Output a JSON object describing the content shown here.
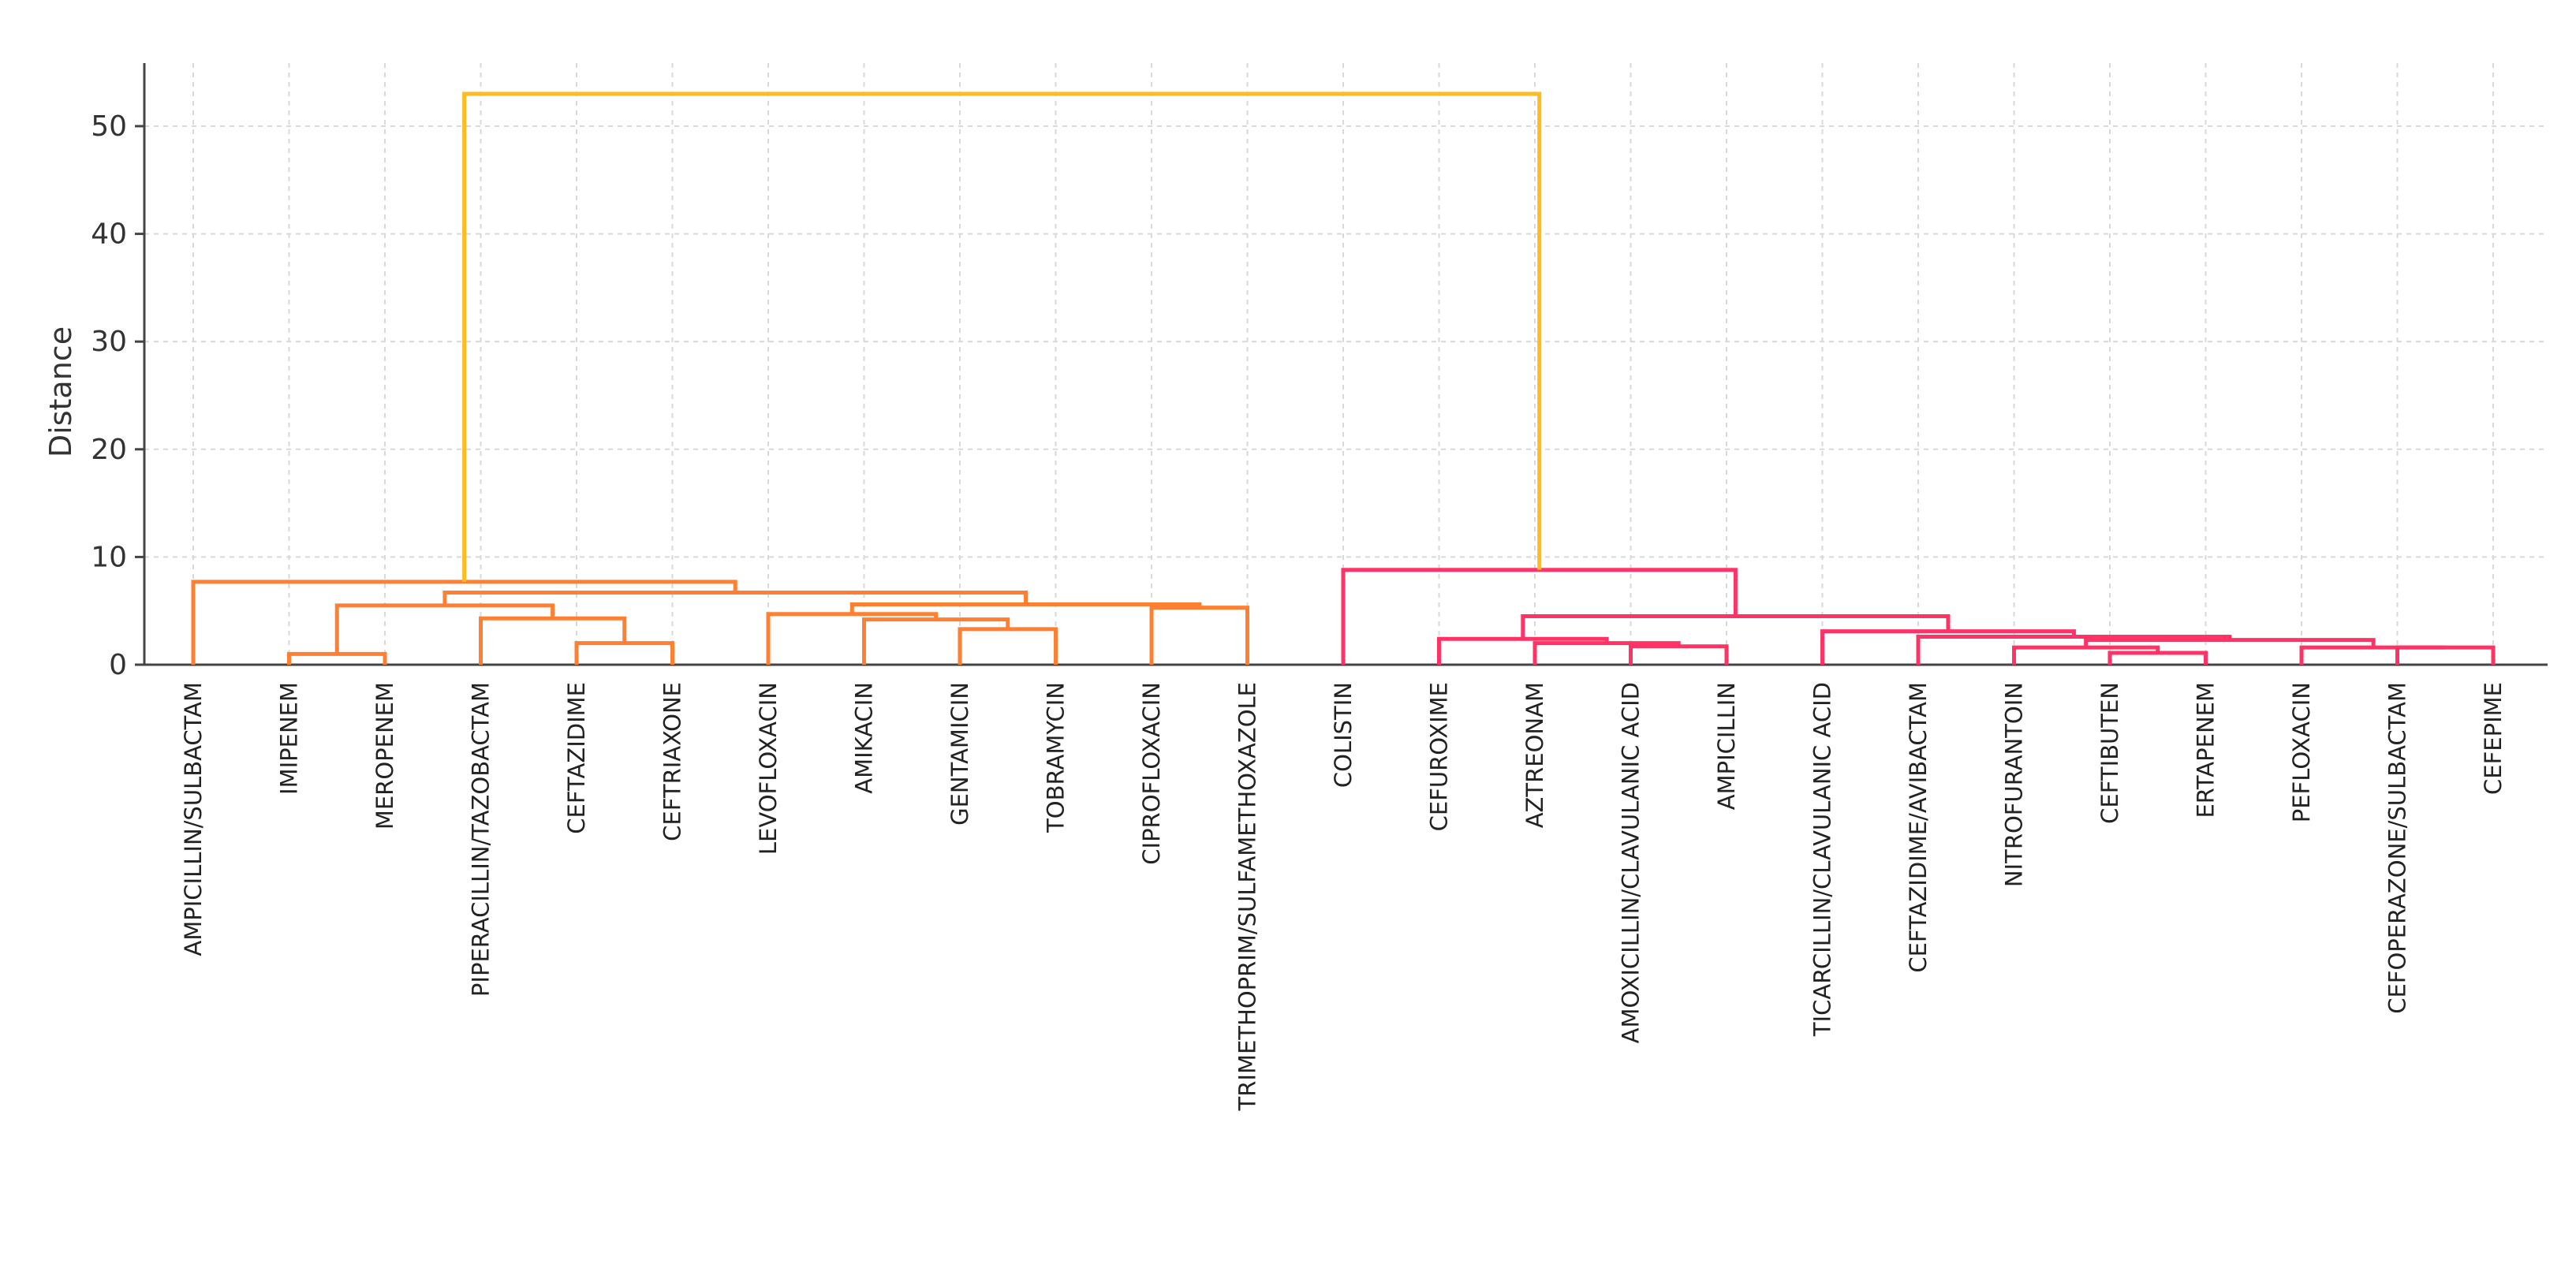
{
  "chart_data": {
    "type": "dendrogram",
    "title": "",
    "xlabel": "",
    "ylabel": "Distance",
    "ylim": [
      0,
      55
    ],
    "yticks": [
      0,
      10,
      20,
      30,
      40,
      50
    ],
    "grid": true,
    "colors": {
      "cluster_a": "#ff7f33",
      "cluster_b": "#ff3366",
      "top": "#ffbb22",
      "axis": "#444444"
    },
    "leaves": [
      "AMPICILLIN/SULBACTAM",
      "IMIPENEM",
      "MEROPENEM",
      "PIPERACILLIN/TAZOBACTAM",
      "CEFTAZIDIME",
      "CEFTRIAXONE",
      "LEVOFLOXACIN",
      "AMIKACIN",
      "GENTAMICIN",
      "TOBRAMYCIN",
      "CIPROFLOXACIN",
      "TRIMETHOPRIM/SULFAMETHOXAZOLE",
      "COLISTIN",
      "CEFUROXIME",
      "AZTREONAM",
      "AMOXICILLIN/CLAVULANIC ACID",
      "AMPICILLIN",
      "TICARCILLIN/CLAVULANIC ACID",
      "CEFTAZIDIME/AVIBACTAM",
      "NITROFURANTOIN",
      "CEFTIBUTEN",
      "ERTAPENEM",
      "PEFLOXACIN",
      "CEFOPERAZONE/SULBACTAM",
      "CEFEPIME"
    ],
    "merges": [
      {
        "id": "m1",
        "left": 1,
        "right": 2,
        "height": 1.0,
        "color": "cluster_a"
      },
      {
        "id": "m2",
        "left": 4,
        "right": 5,
        "height": 2.0,
        "color": "cluster_a"
      },
      {
        "id": "m3",
        "left": 3,
        "right": "m2",
        "height": 4.3,
        "color": "cluster_a"
      },
      {
        "id": "m4",
        "left": "m1",
        "right": "m3",
        "height": 5.5,
        "color": "cluster_a"
      },
      {
        "id": "m5",
        "left": 8,
        "right": 9,
        "height": 3.3,
        "color": "cluster_a"
      },
      {
        "id": "m6",
        "left": 7,
        "right": "m5",
        "height": 4.2,
        "color": "cluster_a"
      },
      {
        "id": "m7",
        "left": 6,
        "right": "m6",
        "height": 4.7,
        "color": "cluster_a"
      },
      {
        "id": "m8",
        "left": 10,
        "right": 11,
        "height": 5.3,
        "color": "cluster_a"
      },
      {
        "id": "m9",
        "left": "m7",
        "right": "m8",
        "height": 5.6,
        "color": "cluster_a"
      },
      {
        "id": "m10",
        "left": "m4",
        "right": "m9",
        "height": 6.7,
        "color": "cluster_a"
      },
      {
        "id": "m11",
        "left": 0,
        "right": "m10",
        "height": 7.7,
        "color": "cluster_a"
      },
      {
        "id": "m12",
        "left": 15,
        "right": 16,
        "height": 1.7,
        "color": "cluster_b"
      },
      {
        "id": "m13",
        "left": 14,
        "right": "m12",
        "height": 2.0,
        "color": "cluster_b"
      },
      {
        "id": "m14",
        "left": 13,
        "right": "m13",
        "height": 2.4,
        "color": "cluster_b"
      },
      {
        "id": "m15",
        "left": 20,
        "right": 21,
        "height": 1.1,
        "color": "cluster_b"
      },
      {
        "id": "m16",
        "left": 19,
        "right": "m15",
        "height": 1.6,
        "color": "cluster_b"
      },
      {
        "id": "m17",
        "left": 23,
        "right": 24,
        "height": 1.6,
        "color": "cluster_b"
      },
      {
        "id": "m18",
        "left": 22,
        "right": "m17",
        "height": 1.6,
        "color": "cluster_b"
      },
      {
        "id": "m19",
        "left": "m16",
        "right": "m18",
        "height": 2.3,
        "color": "cluster_b"
      },
      {
        "id": "m20",
        "left": 18,
        "right": "m19",
        "height": 2.6,
        "color": "cluster_b"
      },
      {
        "id": "m21",
        "left": 17,
        "right": "m20",
        "height": 3.1,
        "color": "cluster_b"
      },
      {
        "id": "m22",
        "left": "m14",
        "right": "m21",
        "height": 4.5,
        "color": "cluster_b"
      },
      {
        "id": "m23",
        "left": 12,
        "right": "m22",
        "height": 8.8,
        "color": "cluster_b"
      },
      {
        "id": "m24",
        "left": "m11",
        "right": "m23",
        "height": 53.0,
        "color": "top"
      }
    ]
  }
}
